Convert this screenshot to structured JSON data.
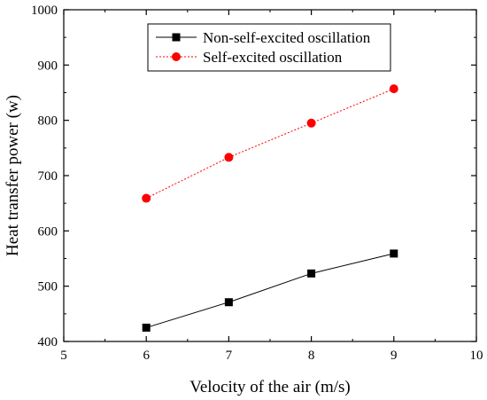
{
  "chart_data": {
    "type": "line",
    "title": "",
    "xlabel": "Velocity of the air (m/s)",
    "ylabel": "Heat transfer power (w)",
    "xlim": [
      5,
      10
    ],
    "ylim": [
      400,
      1000
    ],
    "xticks": [
      5,
      6,
      7,
      8,
      9,
      10
    ],
    "yticks": [
      400,
      500,
      600,
      700,
      800,
      900,
      1000
    ],
    "grid": false,
    "legend_position": "top-center",
    "x": [
      6,
      7,
      8,
      9
    ],
    "series": [
      {
        "name": "Non-self-excited oscillation",
        "values": [
          425,
          471,
          523,
          559
        ],
        "color": "#000000",
        "marker": "square",
        "line_style": "solid"
      },
      {
        "name": "Self-excited oscillation",
        "values": [
          659,
          733,
          795,
          857
        ],
        "color": "#ff0000",
        "marker": "circle",
        "line_style": "dotted"
      }
    ]
  }
}
